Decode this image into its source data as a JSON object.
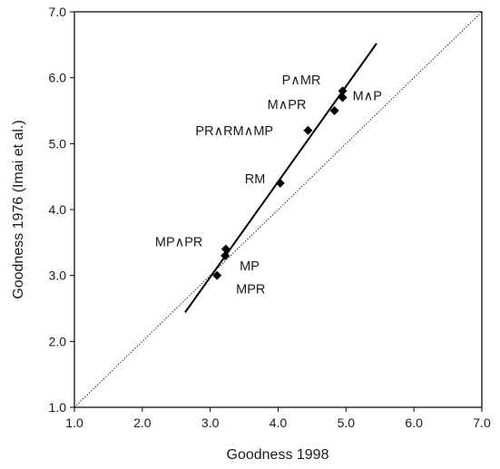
{
  "chart_data": {
    "type": "scatter",
    "title": "",
    "xlabel": "Goodness 1998",
    "ylabel": "Goodness 1976 (Imai et al.)",
    "xlim": [
      1.0,
      7.0
    ],
    "ylim": [
      1.0,
      7.0
    ],
    "x_ticks": [
      "1.0",
      "2.0",
      "3.0",
      "4.0",
      "5.0",
      "6.0",
      "7.0"
    ],
    "y_ticks": [
      "1.0",
      "2.0",
      "3.0",
      "4.0",
      "5.0",
      "6.0",
      "7.0"
    ],
    "grid": false,
    "legend": "none",
    "marker": "diamond",
    "marker_color": "#000000",
    "points": [
      {
        "label": "P∧MR",
        "x": 4.95,
        "y": 5.8
      },
      {
        "label": "M∧P",
        "x": 4.95,
        "y": 5.7
      },
      {
        "label": "M∧PR",
        "x": 4.83,
        "y": 5.5
      },
      {
        "label": "PR∧RM∧MP",
        "x": 4.44,
        "y": 5.2
      },
      {
        "label": "RM",
        "x": 4.03,
        "y": 4.4
      },
      {
        "label": "MP∧PR",
        "x": 3.23,
        "y": 3.4
      },
      {
        "label": "MP",
        "x": 3.22,
        "y": 3.3
      },
      {
        "label": "MPR",
        "x": 3.1,
        "y": 3.0
      }
    ],
    "regression_line": {
      "style": "solid",
      "x": [
        2.63,
        5.45
      ],
      "y": [
        2.44,
        6.52
      ]
    },
    "identity_line": {
      "style": "dotted",
      "x": [
        1.0,
        7.0
      ],
      "y": [
        1.0,
        7.0
      ]
    }
  }
}
